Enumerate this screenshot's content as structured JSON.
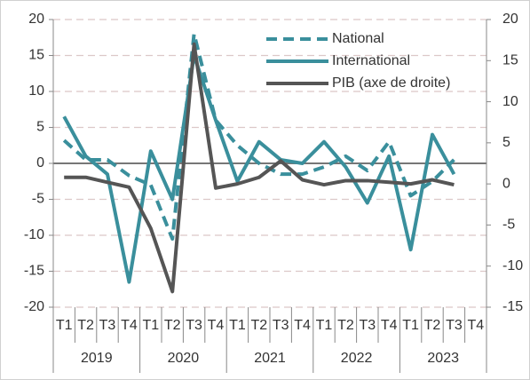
{
  "chart_data": {
    "type": "line",
    "categories": [
      "T1",
      "T2",
      "T3",
      "T4",
      "T1",
      "T2",
      "T3",
      "T4",
      "T1",
      "T2",
      "T3",
      "T4",
      "T1",
      "T2",
      "T3",
      "T4",
      "T1",
      "T2",
      "T3",
      "T4"
    ],
    "years": [
      "2019",
      "2020",
      "2021",
      "2022",
      "2023"
    ],
    "series": [
      {
        "name": "National",
        "color": "#3a8f9c",
        "dash": true,
        "axis": "y",
        "values": [
          3.2,
          0.5,
          0.5,
          -1.7,
          -3,
          -10.5,
          18,
          6,
          2.5,
          0,
          -1.5,
          -1.5,
          -0.5,
          1,
          -1,
          3,
          -4.5,
          -2.5,
          0.5,
          null
        ]
      },
      {
        "name": "International",
        "color": "#3a8f9c",
        "dash": false,
        "axis": "y",
        "values": [
          6.5,
          1,
          -1.5,
          -16.5,
          1.7,
          -5,
          15,
          6,
          -2.5,
          3,
          0.5,
          0,
          3,
          -0.5,
          -5.5,
          1,
          -12,
          4,
          -1.5,
          null
        ]
      },
      {
        "name": "PIB (axe de droite)",
        "color": "#555555",
        "dash": false,
        "axis": "y2",
        "values": [
          0.8,
          0.8,
          0.2,
          -0.4,
          -5.4,
          -13.1,
          17,
          -0.5,
          0,
          0.8,
          2.8,
          0.5,
          -0.1,
          0.4,
          0.4,
          0.2,
          0,
          0.5,
          -0.1,
          null
        ]
      }
    ],
    "ylim": [
      -20,
      20
    ],
    "yticks": [
      -20,
      -15,
      -10,
      -5,
      0,
      5,
      10,
      15,
      20
    ],
    "y2lim": [
      -15,
      20
    ],
    "y2ticks": [
      -15,
      -10,
      -5,
      0,
      5,
      10,
      15,
      20
    ],
    "grid": true
  }
}
